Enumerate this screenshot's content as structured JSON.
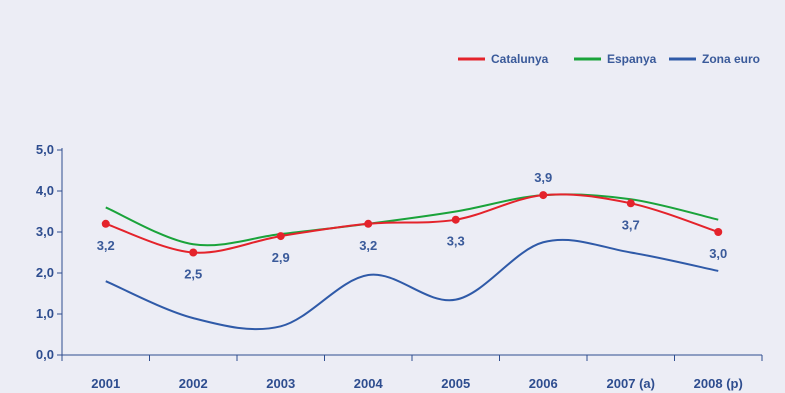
{
  "chart_data": {
    "type": "line",
    "categories": [
      "2001",
      "2002",
      "2003",
      "2004",
      "2005",
      "2006",
      "2007 (a)",
      "2008 (p)"
    ],
    "ylim": [
      0,
      5
    ],
    "yticks": [
      "0,0",
      "1,0",
      "2,0",
      "3,0",
      "4,0",
      "5,0"
    ],
    "legend_position": "top-right",
    "series": [
      {
        "name": "Catalunya",
        "color": "#e4232b",
        "values": [
          3.2,
          2.5,
          2.9,
          3.2,
          3.3,
          3.9,
          3.7,
          3.0
        ],
        "labels": [
          "3,2",
          "2,5",
          "2,9",
          "3,2",
          "3,3",
          "3,9",
          "3,7",
          "3,0"
        ]
      },
      {
        "name": "Espanya",
        "color": "#1aa33a",
        "values": [
          3.6,
          2.7,
          2.95,
          3.2,
          3.5,
          3.9,
          3.8,
          3.3
        ]
      },
      {
        "name": "Zona euro",
        "color": "#2f5aa8",
        "values": [
          1.8,
          0.9,
          0.7,
          1.95,
          1.35,
          2.75,
          2.5,
          2.05
        ]
      }
    ]
  }
}
